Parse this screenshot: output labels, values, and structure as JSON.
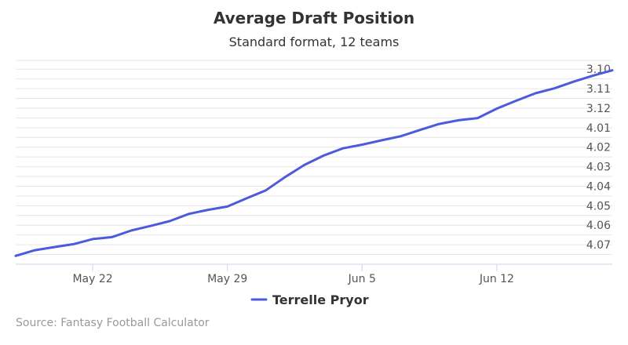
{
  "chart_data": {
    "type": "line",
    "title": "Average Draft Position",
    "subtitle": "Standard format, 12 teams",
    "xlabel": "",
    "ylabel": "",
    "x_ticks": [
      "May 22",
      "May 29",
      "Jun 5",
      "Jun 12"
    ],
    "x_tick_dates": [
      "2017-05-22",
      "2017-05-29",
      "2017-06-05",
      "2017-06-12"
    ],
    "xlim": [
      "2017-05-18",
      "2017-06-18"
    ],
    "y_ticks": [
      "3.10",
      "3.11",
      "3.12",
      "4.01",
      "4.02",
      "4.03",
      "4.04",
      "4.05",
      "4.06",
      "4.07"
    ],
    "y_tick_picks": [
      34,
      35,
      36,
      37,
      38,
      39,
      40,
      41,
      42,
      43
    ],
    "ylim": [
      33.55,
      44.0
    ],
    "y_reversed": true,
    "y_axis_position": "right",
    "grid": true,
    "legend_position": "bottom-center",
    "line_color": "#4c5ade",
    "series": [
      {
        "name": "Terrelle Pryor",
        "color": "#4c5ade",
        "x": [
          "2017-05-18",
          "2017-05-19",
          "2017-05-20",
          "2017-05-21",
          "2017-05-22",
          "2017-05-23",
          "2017-05-24",
          "2017-05-25",
          "2017-05-26",
          "2017-05-27",
          "2017-05-28",
          "2017-05-29",
          "2017-05-30",
          "2017-05-31",
          "2017-06-01",
          "2017-06-02",
          "2017-06-03",
          "2017-06-04",
          "2017-06-05",
          "2017-06-06",
          "2017-06-07",
          "2017-06-08",
          "2017-06-09",
          "2017-06-10",
          "2017-06-11",
          "2017-06-12",
          "2017-06-13",
          "2017-06-14",
          "2017-06-15",
          "2017-06-16",
          "2017-06-17",
          "2017-06-18"
        ],
        "values": [
          43.57,
          43.28,
          43.12,
          42.97,
          42.71,
          42.61,
          42.27,
          42.04,
          41.79,
          41.42,
          41.21,
          41.04,
          40.62,
          40.21,
          39.53,
          38.91,
          38.43,
          38.06,
          37.87,
          37.65,
          37.44,
          37.12,
          36.81,
          36.62,
          36.51,
          36.02,
          35.62,
          35.24,
          34.98,
          34.64,
          34.33,
          34.06
        ]
      }
    ]
  },
  "legend": {
    "label": "Terrelle Pryor"
  },
  "credits": "Source: Fantasy Football Calculator"
}
